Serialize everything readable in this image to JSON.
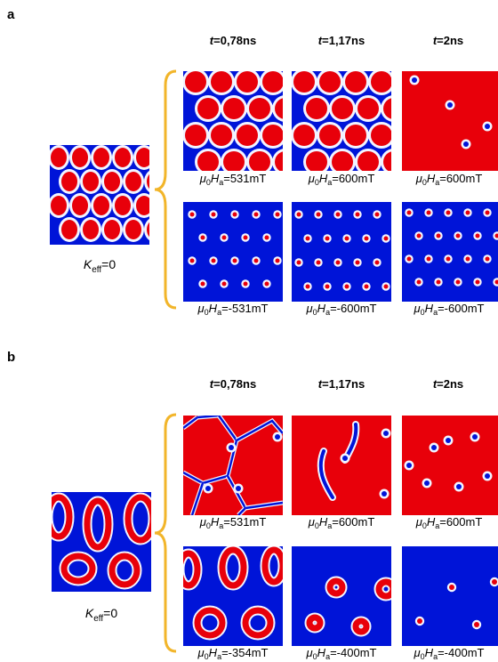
{
  "panels": [
    {
      "label": "a",
      "times": [
        "0,78ns",
        "1,17ns",
        "2ns"
      ],
      "time_var": "t",
      "initial_label": {
        "symbol": "K",
        "sub": "eff",
        "value": "=0"
      },
      "top_fields": [
        {
          "prefix": "μ",
          "prefix_sub": "0",
          "var": "H",
          "var_sub": "a",
          "value": "=531mT"
        },
        {
          "prefix": "μ",
          "prefix_sub": "0",
          "var": "H",
          "var_sub": "a",
          "value": "=600mT"
        },
        {
          "prefix": "μ",
          "prefix_sub": "0",
          "var": "H",
          "var_sub": "a",
          "value": "=600mT"
        }
      ],
      "bottom_fields": [
        {
          "prefix": "μ",
          "prefix_sub": "0",
          "var": "H",
          "var_sub": "a",
          "value": "=-531mT"
        },
        {
          "prefix": "μ",
          "prefix_sub": "0",
          "var": "H",
          "var_sub": "a",
          "value": "=-600mT"
        },
        {
          "prefix": "μ",
          "prefix_sub": "0",
          "var": "H",
          "var_sub": "a",
          "value": "=-600mT"
        }
      ]
    },
    {
      "label": "b",
      "times": [
        "0,78ns",
        "1,17ns",
        "2ns"
      ],
      "time_var": "t",
      "initial_label": {
        "symbol": "K",
        "sub": "eff",
        "value": "=0"
      },
      "top_fields": [
        {
          "prefix": "μ",
          "prefix_sub": "0",
          "var": "H",
          "var_sub": "a",
          "value": "=531mT"
        },
        {
          "prefix": "μ",
          "prefix_sub": "0",
          "var": "H",
          "var_sub": "a",
          "value": "=600mT"
        },
        {
          "prefix": "μ",
          "prefix_sub": "0",
          "var": "H",
          "var_sub": "a",
          "value": "=600mT"
        }
      ],
      "bottom_fields": [
        {
          "prefix": "μ",
          "prefix_sub": "0",
          "var": "H",
          "var_sub": "a",
          "value": "=-354mT"
        },
        {
          "prefix": "μ",
          "prefix_sub": "0",
          "var": "H",
          "var_sub": "a",
          "value": "=-400mT"
        },
        {
          "prefix": "μ",
          "prefix_sub": "0",
          "var": "H",
          "var_sub": "a",
          "value": "=-400mT"
        }
      ]
    }
  ],
  "colors": {
    "up": "#e8000a",
    "down": "#0014d8",
    "wall": "#f2f4ff",
    "brace": "#f2b52a"
  }
}
